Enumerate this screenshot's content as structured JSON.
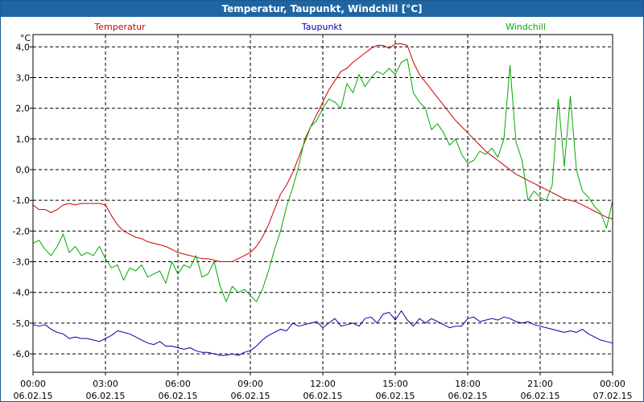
{
  "title": "Temperatur, Taupunkt, Windchill [°C]",
  "colors": {
    "titlebar": "#1f65a3",
    "temperatur": "#cc0000",
    "taupunkt": "#0000aa",
    "windchill": "#00aa00",
    "grid": "#000000"
  },
  "chart_data": {
    "type": "line",
    "title": "Temperatur, Taupunkt, Windchill [°C]",
    "ylabel": "°C",
    "ylim": [
      -6.6,
      4.4
    ],
    "xlim": [
      0,
      24
    ],
    "y_ticks": [
      {
        "value": 4,
        "label": "4,0"
      },
      {
        "value": 3,
        "label": "3,0"
      },
      {
        "value": 2,
        "label": "2,0"
      },
      {
        "value": 1,
        "label": "1,0"
      },
      {
        "value": 0,
        "label": "0,0"
      },
      {
        "value": -1,
        "label": "-1,0"
      },
      {
        "value": -2,
        "label": "-2,0"
      },
      {
        "value": -3,
        "label": "-3,0"
      },
      {
        "value": -4,
        "label": "-4,0"
      },
      {
        "value": -5,
        "label": "-5,0"
      },
      {
        "value": -6,
        "label": "-6,0"
      }
    ],
    "x_ticks": [
      {
        "value": 0,
        "time": "00:00",
        "date": "06.02.15"
      },
      {
        "value": 3,
        "time": "03:00",
        "date": "06.02.15"
      },
      {
        "value": 6,
        "time": "06:00",
        "date": "06.02.15"
      },
      {
        "value": 9,
        "time": "09:00",
        "date": "06.02.15"
      },
      {
        "value": 12,
        "time": "12:00",
        "date": "06.02.15"
      },
      {
        "value": 15,
        "time": "15:00",
        "date": "06.02.15"
      },
      {
        "value": 18,
        "time": "18:00",
        "date": "06.02.15"
      },
      {
        "value": 21,
        "time": "21:00",
        "date": "06.02.15"
      },
      {
        "value": 24,
        "time": "00:00",
        "date": "07.02.15"
      }
    ],
    "grid": true,
    "series": [
      {
        "name": "Temperatur",
        "color": "#cc0000",
        "x": [
          0,
          0.25,
          0.5,
          0.75,
          1,
          1.25,
          1.5,
          1.75,
          2,
          2.25,
          2.5,
          2.75,
          3,
          3.25,
          3.5,
          3.75,
          4,
          4.25,
          4.5,
          4.75,
          5,
          5.25,
          5.5,
          5.75,
          6,
          6.25,
          6.5,
          6.75,
          7,
          7.25,
          7.5,
          7.75,
          8,
          8.25,
          8.5,
          8.75,
          9,
          9.25,
          9.5,
          9.75,
          10,
          10.25,
          10.5,
          10.75,
          11,
          11.25,
          11.5,
          11.75,
          12,
          12.25,
          12.5,
          12.75,
          13,
          13.25,
          13.5,
          13.75,
          14,
          14.25,
          14.5,
          14.75,
          15,
          15.25,
          15.5,
          15.75,
          16,
          16.25,
          16.5,
          16.75,
          17,
          17.25,
          17.5,
          17.75,
          18,
          18.25,
          18.5,
          18.75,
          19,
          19.25,
          19.5,
          19.75,
          20,
          20.25,
          20.5,
          20.75,
          21,
          21.25,
          21.5,
          21.75,
          22,
          22.25,
          22.5,
          22.75,
          23,
          23.25,
          23.5,
          23.75,
          24
        ],
        "values": [
          -1.15,
          -1.3,
          -1.3,
          -1.4,
          -1.3,
          -1.15,
          -1.1,
          -1.15,
          -1.1,
          -1.1,
          -1.1,
          -1.1,
          -1.15,
          -1.5,
          -1.8,
          -2.0,
          -2.1,
          -2.2,
          -2.25,
          -2.35,
          -2.4,
          -2.45,
          -2.5,
          -2.6,
          -2.7,
          -2.75,
          -2.8,
          -2.85,
          -2.9,
          -2.9,
          -2.95,
          -3.0,
          -3.0,
          -3.0,
          -2.9,
          -2.8,
          -2.7,
          -2.5,
          -2.2,
          -1.8,
          -1.3,
          -0.8,
          -0.5,
          -0.1,
          0.4,
          0.9,
          1.4,
          1.8,
          2.2,
          2.6,
          2.9,
          3.2,
          3.3,
          3.5,
          3.65,
          3.8,
          3.95,
          4.05,
          4.05,
          3.95,
          4.1,
          4.1,
          4.05,
          3.5,
          3.1,
          2.85,
          2.6,
          2.35,
          2.1,
          1.85,
          1.6,
          1.4,
          1.2,
          1.0,
          0.8,
          0.6,
          0.45,
          0.3,
          0.15,
          0.0,
          -0.15,
          -0.25,
          -0.35,
          -0.45,
          -0.55,
          -0.65,
          -0.75,
          -0.85,
          -0.95,
          -1.0,
          -1.05,
          -1.15,
          -1.25,
          -1.35,
          -1.45,
          -1.55,
          -1.6
        ]
      },
      {
        "name": "Taupunkt",
        "color": "#0000aa",
        "x": [
          0,
          0.25,
          0.5,
          0.75,
          1,
          1.25,
          1.5,
          1.75,
          2,
          2.25,
          2.5,
          2.75,
          3,
          3.25,
          3.5,
          3.75,
          4,
          4.25,
          4.5,
          4.75,
          5,
          5.25,
          5.5,
          5.75,
          6,
          6.25,
          6.5,
          6.75,
          7,
          7.25,
          7.5,
          7.75,
          8,
          8.25,
          8.5,
          8.75,
          9,
          9.25,
          9.5,
          9.75,
          10,
          10.25,
          10.5,
          10.75,
          11,
          11.25,
          11.5,
          11.75,
          12,
          12.25,
          12.5,
          12.75,
          13,
          13.25,
          13.5,
          13.75,
          14,
          14.25,
          14.5,
          14.75,
          15,
          15.25,
          15.5,
          15.75,
          16,
          16.25,
          16.5,
          16.75,
          17,
          17.25,
          17.5,
          17.75,
          18,
          18.25,
          18.5,
          18.75,
          19,
          19.25,
          19.5,
          19.75,
          20,
          20.25,
          20.5,
          20.75,
          21,
          21.25,
          21.5,
          21.75,
          22,
          22.25,
          22.5,
          22.75,
          23,
          23.25,
          23.5,
          23.75,
          24
        ],
        "values": [
          -5.05,
          -5.1,
          -5.05,
          -5.2,
          -5.3,
          -5.35,
          -5.5,
          -5.45,
          -5.5,
          -5.5,
          -5.55,
          -5.6,
          -5.5,
          -5.4,
          -5.25,
          -5.3,
          -5.35,
          -5.45,
          -5.55,
          -5.65,
          -5.7,
          -5.6,
          -5.75,
          -5.75,
          -5.8,
          -5.85,
          -5.8,
          -5.9,
          -5.95,
          -5.95,
          -6.0,
          -6.05,
          -6.05,
          -6.0,
          -6.05,
          -5.95,
          -5.9,
          -5.75,
          -5.55,
          -5.4,
          -5.3,
          -5.2,
          -5.25,
          -5.0,
          -5.1,
          -5.05,
          -5.0,
          -4.95,
          -5.15,
          -5.0,
          -4.85,
          -5.1,
          -5.05,
          -5.0,
          -5.1,
          -4.85,
          -4.8,
          -5.0,
          -4.7,
          -4.65,
          -4.9,
          -4.6,
          -4.9,
          -5.1,
          -4.85,
          -5.0,
          -4.85,
          -4.95,
          -5.05,
          -5.15,
          -5.1,
          -5.1,
          -4.85,
          -4.8,
          -4.95,
          -4.9,
          -4.85,
          -4.9,
          -4.8,
          -4.85,
          -4.95,
          -5.0,
          -4.95,
          -5.05,
          -5.1,
          -5.15,
          -5.2,
          -5.25,
          -5.3,
          -5.25,
          -5.3,
          -5.2,
          -5.35,
          -5.45,
          -5.55,
          -5.6,
          -5.65
        ]
      },
      {
        "name": "Windchill",
        "color": "#00aa00",
        "x": [
          0,
          0.25,
          0.5,
          0.75,
          1,
          1.25,
          1.5,
          1.75,
          2,
          2.25,
          2.5,
          2.75,
          3,
          3.25,
          3.5,
          3.75,
          4,
          4.25,
          4.5,
          4.75,
          5,
          5.25,
          5.5,
          5.75,
          6,
          6.25,
          6.5,
          6.75,
          7,
          7.25,
          7.5,
          7.75,
          8,
          8.25,
          8.5,
          8.75,
          9,
          9.25,
          9.5,
          9.75,
          10,
          10.25,
          10.5,
          10.75,
          11,
          11.25,
          11.5,
          11.75,
          12,
          12.25,
          12.5,
          12.75,
          13,
          13.25,
          13.5,
          13.75,
          14,
          14.25,
          14.5,
          14.75,
          15,
          15.25,
          15.5,
          15.75,
          16,
          16.25,
          16.5,
          16.75,
          17,
          17.25,
          17.5,
          17.75,
          18,
          18.25,
          18.5,
          18.75,
          19,
          19.25,
          19.5,
          19.75,
          20,
          20.25,
          20.5,
          20.75,
          21,
          21.25,
          21.5,
          21.75,
          22,
          22.25,
          22.5,
          22.75,
          23,
          23.25,
          23.5,
          23.75,
          24
        ],
        "values": [
          -2.4,
          -2.3,
          -2.6,
          -2.8,
          -2.5,
          -2.1,
          -2.7,
          -2.5,
          -2.8,
          -2.7,
          -2.8,
          -2.5,
          -2.9,
          -3.2,
          -3.1,
          -3.6,
          -3.2,
          -3.3,
          -3.1,
          -3.5,
          -3.4,
          -3.3,
          -3.7,
          -3.0,
          -3.4,
          -3.1,
          -3.2,
          -2.8,
          -3.5,
          -3.4,
          -3.0,
          -3.8,
          -4.3,
          -3.8,
          -4.0,
          -3.9,
          -4.1,
          -4.3,
          -3.9,
          -3.3,
          -2.6,
          -2.0,
          -1.2,
          -0.6,
          0.1,
          1.0,
          1.4,
          1.6,
          2.0,
          2.3,
          2.2,
          2.0,
          2.8,
          2.5,
          3.1,
          2.7,
          3.0,
          3.2,
          3.1,
          3.3,
          3.1,
          3.5,
          3.6,
          2.5,
          2.2,
          2.0,
          1.3,
          1.5,
          1.2,
          0.8,
          1.0,
          0.5,
          0.2,
          0.3,
          0.6,
          0.5,
          0.7,
          0.4,
          1.0,
          3.4,
          0.9,
          0.3,
          -1.0,
          -0.7,
          -0.9,
          -1.0,
          -0.5,
          2.3,
          0.1,
          2.4,
          0.0,
          -0.7,
          -0.9,
          -1.2,
          -1.4,
          -1.9,
          -1.0
        ]
      }
    ]
  }
}
